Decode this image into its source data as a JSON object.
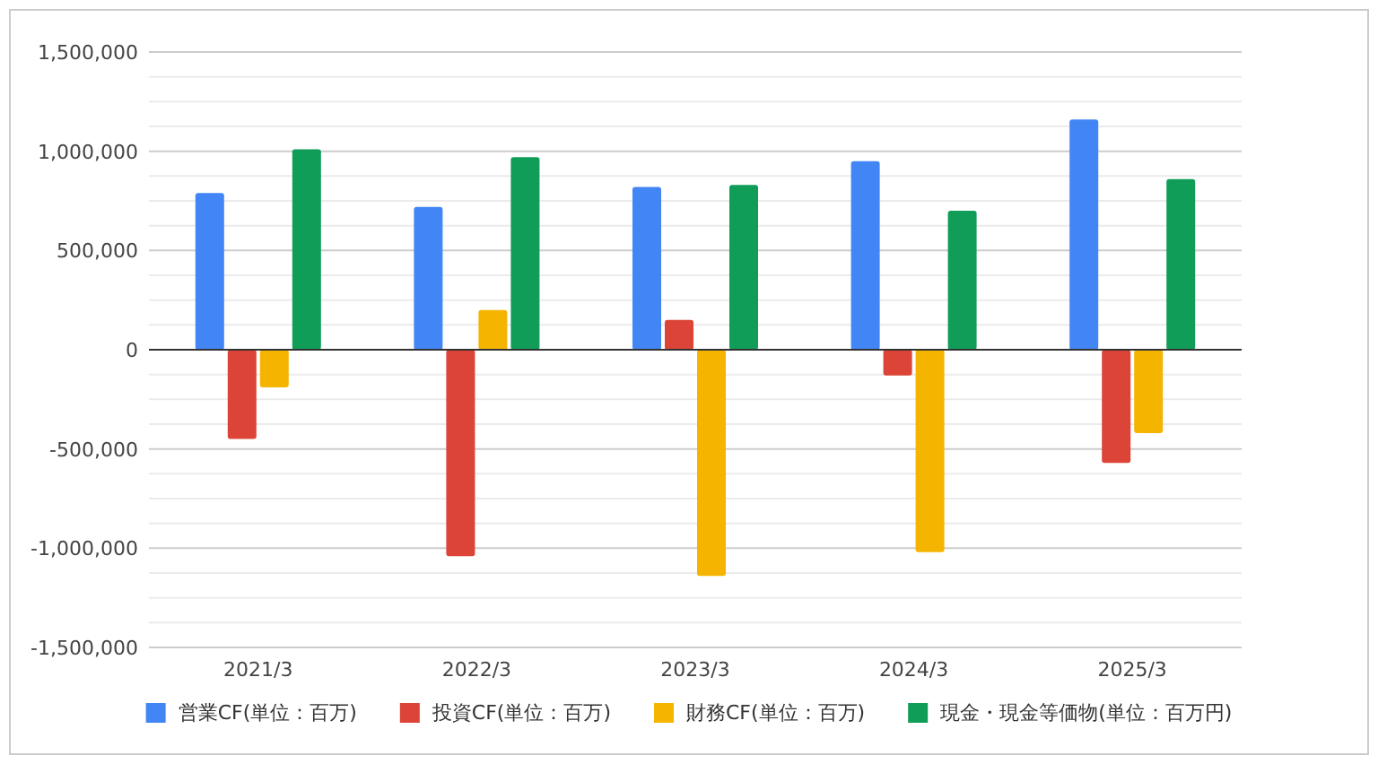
{
  "chart_data": {
    "type": "bar",
    "categories": [
      "2021/3",
      "2022/3",
      "2023/3",
      "2024/3",
      "2025/3"
    ],
    "series": [
      {
        "name": "営業CF(単位：百万)",
        "color": "#4285f4",
        "values": [
          790000,
          720000,
          820000,
          950000,
          1160000
        ]
      },
      {
        "name": "投資CF(単位：百万)",
        "color": "#db4437",
        "values": [
          -450000,
          -1040000,
          150000,
          -130000,
          -570000
        ]
      },
      {
        "name": "財務CF(単位：百万)",
        "color": "#f4b400",
        "values": [
          -190000,
          200000,
          -1140000,
          -1020000,
          -420000
        ]
      },
      {
        "name": "現金・現金等価物(単位：百万円)",
        "color": "#0f9d58",
        "values": [
          1010000,
          970000,
          830000,
          700000,
          860000
        ]
      }
    ],
    "ylim": [
      -1500000,
      1500000
    ],
    "yticks": [
      {
        "value": -1500000,
        "label": "-1,500,000"
      },
      {
        "value": -1000000,
        "label": "-1,000,000"
      },
      {
        "value": -500000,
        "label": "-500,000"
      },
      0,
      {
        "value": 500000,
        "label": "500,000"
      },
      {
        "value": 1000000,
        "label": "1,000,000"
      },
      {
        "value": 1500000,
        "label": "1,500,000"
      }
    ],
    "grid": "y",
    "legend": "bottom"
  }
}
